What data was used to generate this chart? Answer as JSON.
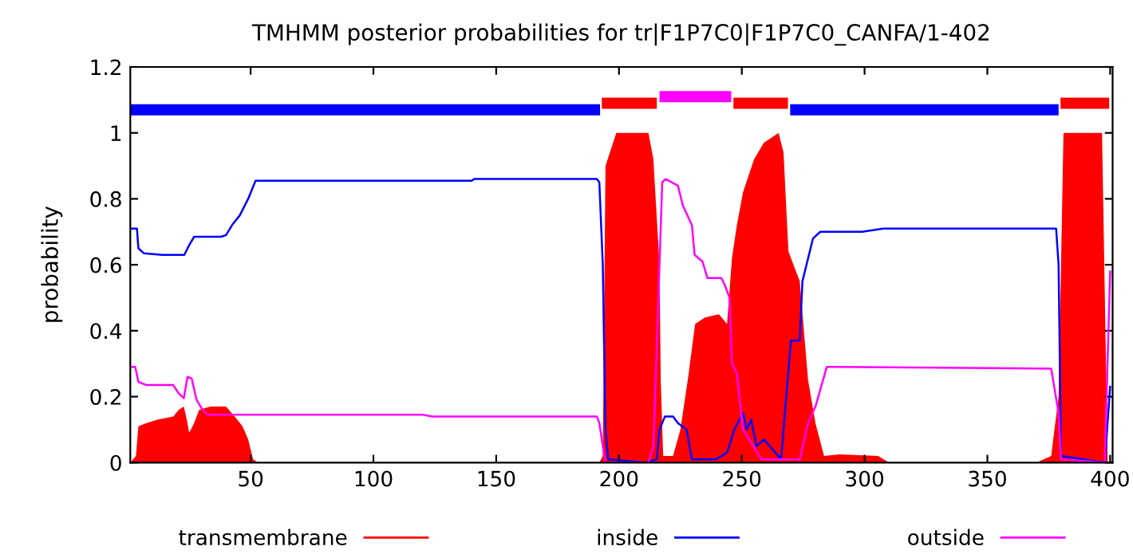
{
  "chart_data": {
    "type": "line",
    "title": "TMHMM posterior probabilities for tr|F1P7C0|F1P7C0_CANFA/1-402",
    "ylabel": "probability",
    "xlim": [
      1,
      401
    ],
    "ylim": [
      0,
      1.2
    ],
    "xticks": [
      50,
      100,
      150,
      200,
      250,
      300,
      350,
      400
    ],
    "yticks": [
      0,
      0.2,
      0.4,
      0.6,
      0.8,
      1,
      1.2
    ],
    "legend": "bottom",
    "series": [
      {
        "name": "transmembrane",
        "color": "#ff0000",
        "type": "area",
        "x": [
          1,
          3.3,
          4.3,
          7.6,
          12,
          18.5,
          20.7,
          22.8,
          24,
          25,
          27,
          29,
          33.7,
          40,
          43.5,
          46.7,
          49,
          51,
          53,
          192,
          193.4,
          194.5,
          198.9,
          212,
          214,
          216.5,
          217,
          218,
          222,
          225,
          228,
          231,
          235,
          240.7,
          244,
          246,
          248,
          250.5,
          255,
          259,
          265,
          267,
          269,
          273.6,
          277,
          280,
          283.5,
          290,
          305.5,
          310,
          370,
          376,
          379,
          381,
          396.7,
          399,
          401
        ],
        "values": [
          0,
          0.02,
          0.11,
          0.12,
          0.13,
          0.14,
          0.16,
          0.17,
          0.13,
          0.09,
          0.12,
          0.16,
          0.17,
          0.17,
          0.14,
          0.11,
          0.07,
          0.01,
          0,
          0,
          0.02,
          0.9,
          1,
          1,
          0.92,
          0.6,
          0.25,
          0.02,
          0.02,
          0.1,
          0.25,
          0.42,
          0.44,
          0.45,
          0.42,
          0.62,
          0.72,
          0.82,
          0.92,
          0.97,
          1,
          0.94,
          0.64,
          0.55,
          0.25,
          0.12,
          0.02,
          0.025,
          0.02,
          0,
          0,
          0.02,
          0.2,
          1,
          1,
          0,
          0
        ]
      },
      {
        "name": "inside",
        "color": "#0000ff",
        "x": [
          1,
          3.7,
          4.3,
          6.5,
          14,
          23,
          25,
          27,
          38,
          40,
          42.4,
          45.6,
          49,
          52,
          140,
          141,
          191,
          192,
          193.4,
          194.5,
          195.6,
          211,
          215.4,
          216.5,
          218.7,
          222,
          224,
          227.5,
          229.7,
          239.6,
          244,
          247,
          250.5,
          252,
          253.8,
          256,
          259,
          266,
          270,
          273.6,
          274.7,
          279,
          282,
          299,
          307.7,
          378,
          379,
          380,
          397.8,
          400
        ],
        "values": [
          0.71,
          0.71,
          0.65,
          0.635,
          0.63,
          0.63,
          0.66,
          0.685,
          0.685,
          0.69,
          0.72,
          0.75,
          0.8,
          0.855,
          0.855,
          0.86,
          0.86,
          0.85,
          0.6,
          0.1,
          0.01,
          0,
          0.01,
          0.1,
          0.14,
          0.14,
          0.12,
          0.1,
          0.01,
          0.01,
          0.03,
          0.1,
          0.15,
          0.1,
          0.13,
          0.05,
          0.07,
          0.01,
          0.37,
          0.37,
          0.55,
          0.68,
          0.7,
          0.7,
          0.71,
          0.71,
          0.6,
          0.02,
          0,
          0.23
        ]
      },
      {
        "name": "outside",
        "color": "#ff00ff",
        "x": [
          1,
          3,
          4.3,
          7.6,
          18.5,
          20.7,
          22.8,
          24.3,
          26,
          28,
          30.4,
          32.6,
          120,
          124,
          191,
          192,
          193.4,
          194.5,
          212,
          214,
          216.5,
          217.6,
          219,
          224,
          226,
          229.7,
          230.8,
          234,
          236,
          241.7,
          243,
          245,
          246,
          248,
          250.5,
          258,
          273.6,
          277,
          280,
          284.6,
          288,
          376,
          379,
          380,
          397.8,
          400
        ],
        "values": [
          0.29,
          0.29,
          0.245,
          0.235,
          0.235,
          0.21,
          0.195,
          0.26,
          0.255,
          0.19,
          0.16,
          0.145,
          0.145,
          0.14,
          0.14,
          0.12,
          0.05,
          0,
          0,
          0.05,
          0.6,
          0.85,
          0.86,
          0.84,
          0.78,
          0.72,
          0.63,
          0.61,
          0.56,
          0.56,
          0.54,
          0.5,
          0.3,
          0.27,
          0.1,
          0.01,
          0.01,
          0.12,
          0.17,
          0.29,
          0.29,
          0.285,
          0.15,
          0.01,
          0,
          0.58
        ]
      },
      {
        "color": "#0000ff",
        "x": [
          1,
          192.3
        ],
        "values": [
          1.07,
          1.07
        ]
      },
      {
        "color": "#ff0000",
        "x": [
          193,
          215.4
        ],
        "values": [
          1.09,
          1.09
        ]
      },
      {
        "color": "#ff00ff",
        "x": [
          216.5,
          245.7
        ],
        "values": [
          1.11,
          1.11
        ]
      },
      {
        "color": "#ff0000",
        "x": [
          246.6,
          268.8
        ],
        "values": [
          1.09,
          1.09
        ]
      },
      {
        "color": "#0000ff",
        "x": [
          269.7,
          379
        ],
        "values": [
          1.07,
          1.07
        ]
      },
      {
        "color": "#ff0000",
        "x": [
          379.8,
          399.6
        ],
        "values": [
          1.09,
          1.09
        ]
      }
    ]
  }
}
